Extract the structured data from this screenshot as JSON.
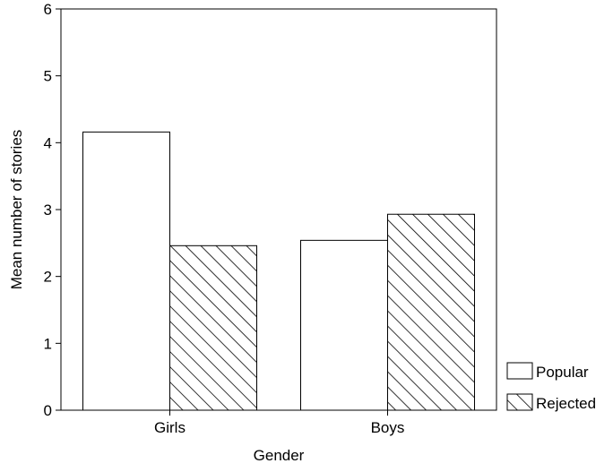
{
  "chart_data": {
    "type": "bar",
    "title": "",
    "xlabel": "Gender",
    "ylabel": "Mean number of stories",
    "categories": [
      "Girls",
      "Boys"
    ],
    "ylim": [
      0,
      6
    ],
    "yticks": [
      "0",
      "1",
      "2",
      "3",
      "4",
      "5",
      "6"
    ],
    "grid": false,
    "legend_position": "bottom-right outside",
    "series": [
      {
        "name": "Popular",
        "fill": "white",
        "values": [
          4.16,
          2.54
        ]
      },
      {
        "name": "Rejected",
        "fill": "diagonal-hatch",
        "values": [
          2.46,
          2.93
        ]
      }
    ],
    "colors": {
      "bar_stroke": "#000000",
      "bar_fill": "#ffffff",
      "hatch": "#000000"
    }
  }
}
